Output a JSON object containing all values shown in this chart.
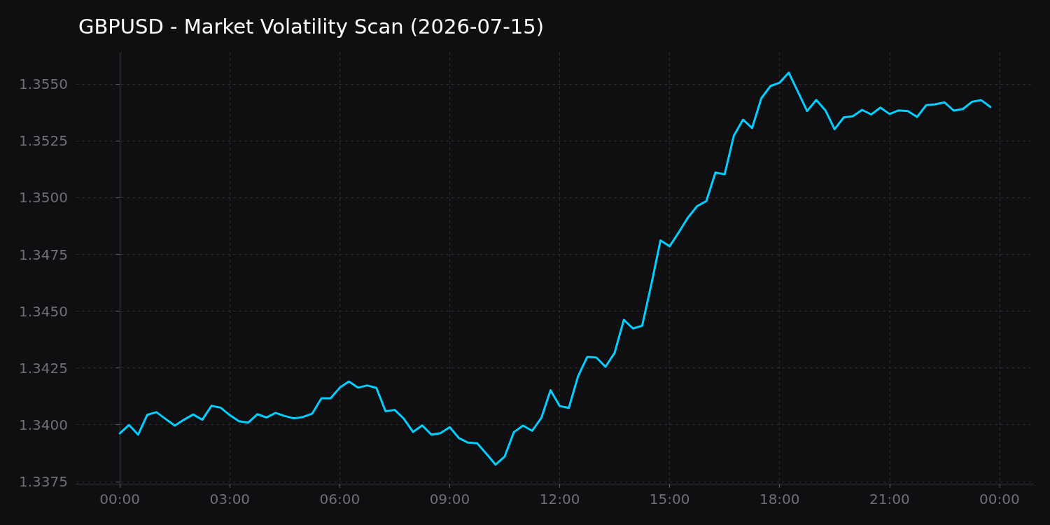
{
  "chart_data": {
    "type": "line",
    "title": "GBPUSD - Market Volatility Scan (2026-07-15)",
    "x": [
      0,
      0.25,
      0.5,
      0.75,
      1,
      1.25,
      1.5,
      1.75,
      2,
      2.25,
      2.5,
      2.75,
      3,
      3.25,
      3.5,
      3.75,
      4,
      4.25,
      4.5,
      4.75,
      5,
      5.25,
      5.5,
      5.75,
      6,
      6.25,
      6.5,
      6.75,
      7,
      7.25,
      7.5,
      7.75,
      8,
      8.25,
      8.5,
      8.75,
      9,
      9.25,
      9.5,
      9.75,
      10,
      10.25,
      10.5,
      10.75,
      11,
      11.25,
      11.5,
      11.75,
      12,
      12.25,
      12.5,
      12.75,
      13,
      13.25,
      13.5,
      13.75,
      14,
      14.25,
      14.5,
      14.75,
      15,
      15.25,
      15.5,
      15.75,
      16,
      16.25,
      16.5,
      16.75,
      17,
      17.25,
      17.5,
      17.75,
      18,
      18.25,
      18.5,
      18.75,
      19,
      19.25,
      19.5,
      19.75,
      20,
      20.25,
      20.5,
      20.75,
      21,
      21.25,
      21.5,
      21.75,
      22,
      22.25,
      22.5,
      22.75,
      23,
      23.25,
      23.5,
      23.75
    ],
    "series": [
      {
        "color": "#00cfff",
        "values": [
          1.33962,
          1.33999,
          1.33956,
          1.34044,
          1.34055,
          1.34025,
          1.33996,
          1.34022,
          1.34045,
          1.34022,
          1.34083,
          1.34075,
          1.34042,
          1.34015,
          1.34009,
          1.34046,
          1.34032,
          1.34052,
          1.34038,
          1.34028,
          1.34034,
          1.34049,
          1.34116,
          1.34116,
          1.34163,
          1.3419,
          1.34163,
          1.34173,
          1.34162,
          1.34059,
          1.34065,
          1.34026,
          1.33968,
          1.33997,
          1.33956,
          1.33963,
          1.33989,
          1.33941,
          1.33921,
          1.33918,
          1.33872,
          1.33824,
          1.3386,
          1.33967,
          1.33996,
          1.33973,
          1.3403,
          1.34152,
          1.34082,
          1.34074,
          1.34213,
          1.34298,
          1.34296,
          1.34255,
          1.34317,
          1.34462,
          1.34424,
          1.34436,
          1.34618,
          1.34812,
          1.34786,
          1.34848,
          1.34913,
          1.34963,
          1.34985,
          1.35111,
          1.35103,
          1.35273,
          1.35344,
          1.35307,
          1.35438,
          1.35492,
          1.35507,
          1.35551,
          1.35467,
          1.35382,
          1.35431,
          1.35385,
          1.35302,
          1.35354,
          1.35359,
          1.35387,
          1.35367,
          1.35397,
          1.35369,
          1.35385,
          1.35382,
          1.35356,
          1.35408,
          1.35412,
          1.3542,
          1.35384,
          1.35391,
          1.35423,
          1.3543,
          1.354
        ]
      }
    ],
    "xlim": [
      -1.1875,
      24.9375
    ],
    "xticks": [
      {
        "value": 0,
        "label": "00:00"
      },
      {
        "value": 3,
        "label": "03:00"
      },
      {
        "value": 6,
        "label": "06:00"
      },
      {
        "value": 9,
        "label": "09:00"
      },
      {
        "value": 12,
        "label": "12:00"
      },
      {
        "value": 15,
        "label": "15:00"
      },
      {
        "value": 18,
        "label": "18:00"
      },
      {
        "value": 21,
        "label": "21:00"
      },
      {
        "value": 24,
        "label": "00:00"
      }
    ],
    "ylim": [
      1.3374,
      1.3564
    ],
    "yticks": [
      1.3375,
      {
        "value": 1.34,
        "label": "1.3400"
      },
      1.3425,
      {
        "value": 1.345,
        "label": "1.3450"
      },
      1.3475,
      {
        "value": 1.35,
        "label": "1.3500"
      },
      1.3525,
      {
        "value": 1.355,
        "label": "1.3550"
      }
    ],
    "grid": true
  }
}
